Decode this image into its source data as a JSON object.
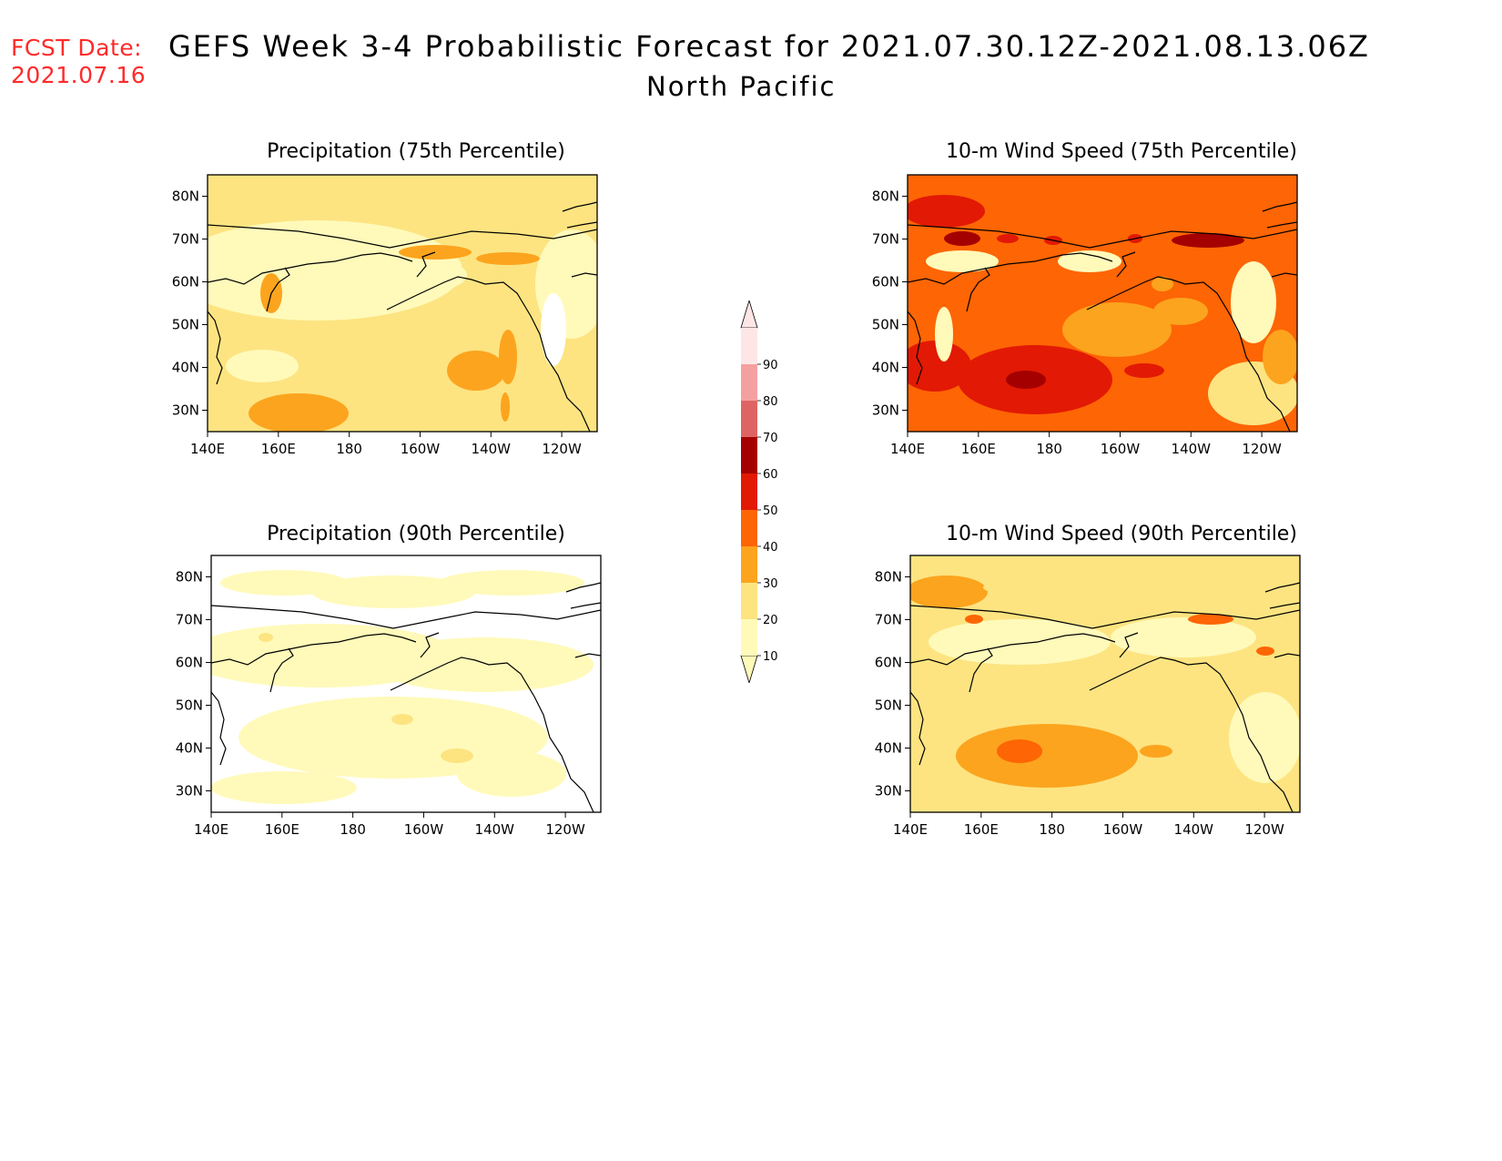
{
  "header": {
    "fcst_label": "FCST Date:",
    "fcst_date": "2021.07.16",
    "title": "GEFS Week 3-4 Probabilistic Forecast for 2021.07.30.12Z-2021.08.13.06Z",
    "subtitle": "North Pacific"
  },
  "colors": {
    "c10": "#fffaba",
    "c20": "#fde481",
    "c30": "#fca41e",
    "c40": "#fe6504",
    "c50": "#e21904",
    "c60": "#a50000",
    "c70": "#de6464",
    "c80": "#f5a0a0",
    "c90": "#ffe6e6"
  },
  "colorbar": {
    "labels": [
      "10",
      "20",
      "30",
      "40",
      "50",
      "60",
      "70",
      "80",
      "90"
    ]
  },
  "axes": {
    "lon_ticks": [
      "140E",
      "160E",
      "180",
      "160W",
      "140W",
      "120W"
    ],
    "lat_ticks": [
      "30N",
      "40N",
      "50N",
      "60N",
      "70N",
      "80N"
    ]
  },
  "panels": [
    {
      "id": "p75",
      "title": "Precipitation (75th Percentile)",
      "base": "c20"
    },
    {
      "id": "p90",
      "title": "Precipitation (90th Percentile)",
      "base": "none"
    },
    {
      "id": "w75",
      "title": "10-m Wind Speed (75th Percentile)",
      "base": "c40"
    },
    {
      "id": "w90",
      "title": "10-m Wind Speed (90th Percentile)",
      "base": "c20"
    }
  ]
}
